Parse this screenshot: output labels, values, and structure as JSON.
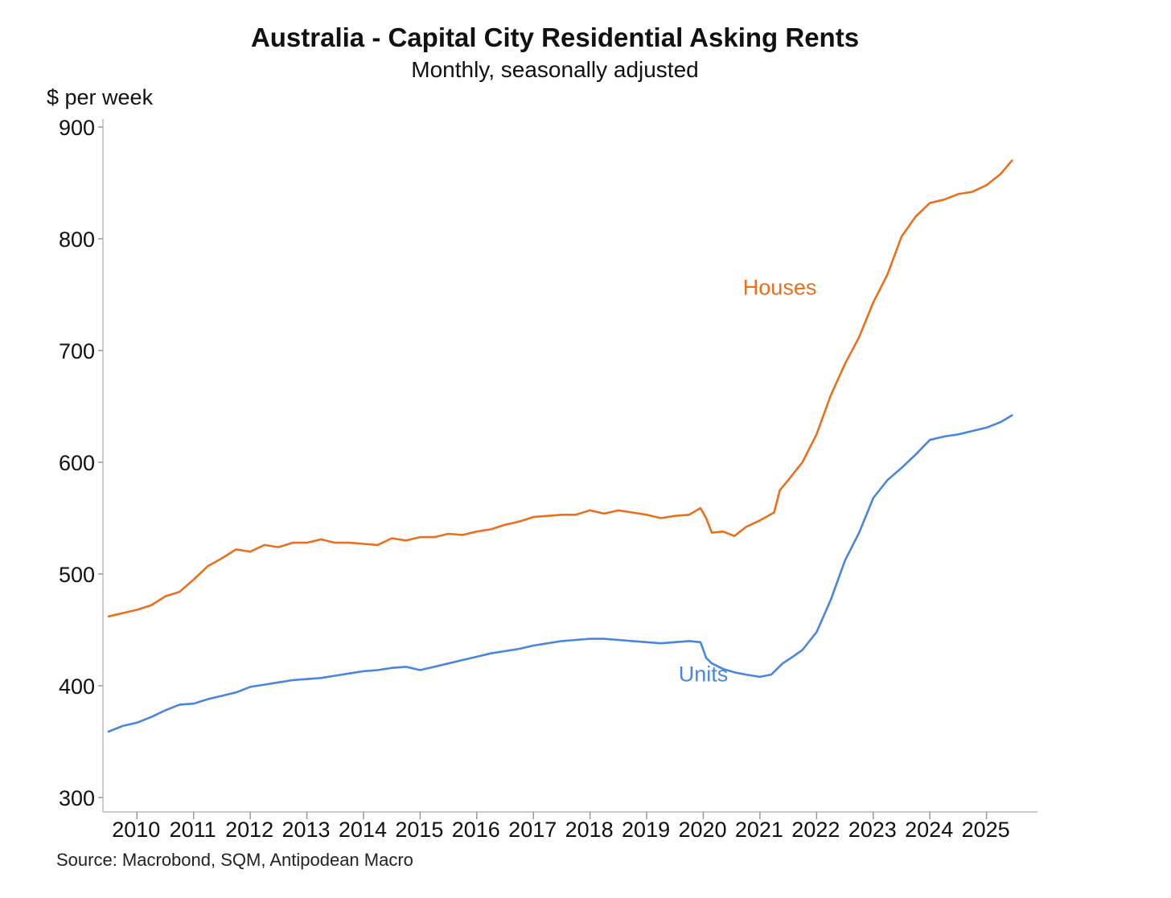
{
  "chart_data": {
    "type": "line",
    "title": "Australia - Capital City Residential Asking Rents",
    "subtitle": "Monthly, seasonally adjusted",
    "ylabel": "$ per week",
    "xlabel": "",
    "ylim": [
      300,
      900
    ],
    "xlim": [
      2009.4,
      2025.9
    ],
    "yticks": [
      300,
      400,
      500,
      600,
      700,
      800,
      900
    ],
    "xticks": [
      "2010",
      "2011",
      "2012",
      "2013",
      "2014",
      "2015",
      "2016",
      "2017",
      "2018",
      "2019",
      "2020",
      "2021",
      "2022",
      "2023",
      "2024",
      "2025"
    ],
    "grid": false,
    "source": "Source: Macrobond, SQM, Antipodean Macro",
    "series": [
      {
        "name": "Houses",
        "color": "#E8701E",
        "x": [
          2009.5,
          2009.75,
          2010.0,
          2010.25,
          2010.5,
          2010.75,
          2011.0,
          2011.25,
          2011.5,
          2011.75,
          2012.0,
          2012.25,
          2012.5,
          2012.75,
          2013.0,
          2013.25,
          2013.5,
          2013.75,
          2014.0,
          2014.25,
          2014.5,
          2014.75,
          2015.0,
          2015.25,
          2015.5,
          2015.75,
          2016.0,
          2016.25,
          2016.5,
          2016.75,
          2017.0,
          2017.25,
          2017.5,
          2017.75,
          2018.0,
          2018.25,
          2018.5,
          2018.75,
          2019.0,
          2019.25,
          2019.5,
          2019.75,
          2019.95,
          2020.05,
          2020.15,
          2020.35,
          2020.55,
          2020.75,
          2021.0,
          2021.25,
          2021.35,
          2021.5,
          2021.75,
          2022.0,
          2022.25,
          2022.5,
          2022.75,
          2023.0,
          2023.25,
          2023.5,
          2023.75,
          2024.0,
          2024.25,
          2024.5,
          2024.75,
          2025.0,
          2025.25,
          2025.45
        ],
        "values": [
          462,
          465,
          468,
          472,
          480,
          484,
          495,
          507,
          514,
          522,
          520,
          526,
          524,
          528,
          528,
          531,
          528,
          528,
          527,
          526,
          532,
          530,
          533,
          533,
          536,
          535,
          538,
          540,
          544,
          547,
          551,
          552,
          553,
          553,
          557,
          554,
          557,
          555,
          553,
          550,
          552,
          553,
          559,
          550,
          537,
          538,
          534,
          542,
          548,
          555,
          575,
          584,
          600,
          625,
          660,
          688,
          712,
          743,
          768,
          802,
          820,
          832,
          835,
          840,
          842,
          848,
          858,
          870
        ]
      },
      {
        "name": "Units",
        "color": "#4A86DB",
        "x": [
          2009.5,
          2009.75,
          2010.0,
          2010.25,
          2010.5,
          2010.75,
          2011.0,
          2011.25,
          2011.5,
          2011.75,
          2012.0,
          2012.25,
          2012.5,
          2012.75,
          2013.0,
          2013.25,
          2013.5,
          2013.75,
          2014.0,
          2014.25,
          2014.5,
          2014.75,
          2015.0,
          2015.25,
          2015.5,
          2015.75,
          2016.0,
          2016.25,
          2016.5,
          2016.75,
          2017.0,
          2017.25,
          2017.5,
          2017.75,
          2018.0,
          2018.25,
          2018.5,
          2018.75,
          2019.0,
          2019.25,
          2019.5,
          2019.75,
          2019.95,
          2020.05,
          2020.15,
          2020.35,
          2020.55,
          2020.75,
          2021.0,
          2021.2,
          2021.4,
          2021.55,
          2021.75,
          2022.0,
          2022.25,
          2022.5,
          2022.75,
          2023.0,
          2023.25,
          2023.5,
          2023.75,
          2024.0,
          2024.25,
          2024.5,
          2024.75,
          2025.0,
          2025.25,
          2025.45
        ],
        "values": [
          359,
          364,
          367,
          372,
          378,
          383,
          384,
          388,
          391,
          394,
          399,
          401,
          403,
          405,
          406,
          407,
          409,
          411,
          413,
          414,
          416,
          417,
          414,
          417,
          420,
          423,
          426,
          429,
          431,
          433,
          436,
          438,
          440,
          441,
          442,
          442,
          441,
          440,
          439,
          438,
          439,
          440,
          439,
          425,
          420,
          415,
          412,
          410,
          408,
          410,
          420,
          425,
          432,
          448,
          477,
          512,
          537,
          568,
          584,
          595,
          607,
          620,
          623,
          625,
          628,
          631,
          636,
          642
        ]
      }
    ]
  }
}
